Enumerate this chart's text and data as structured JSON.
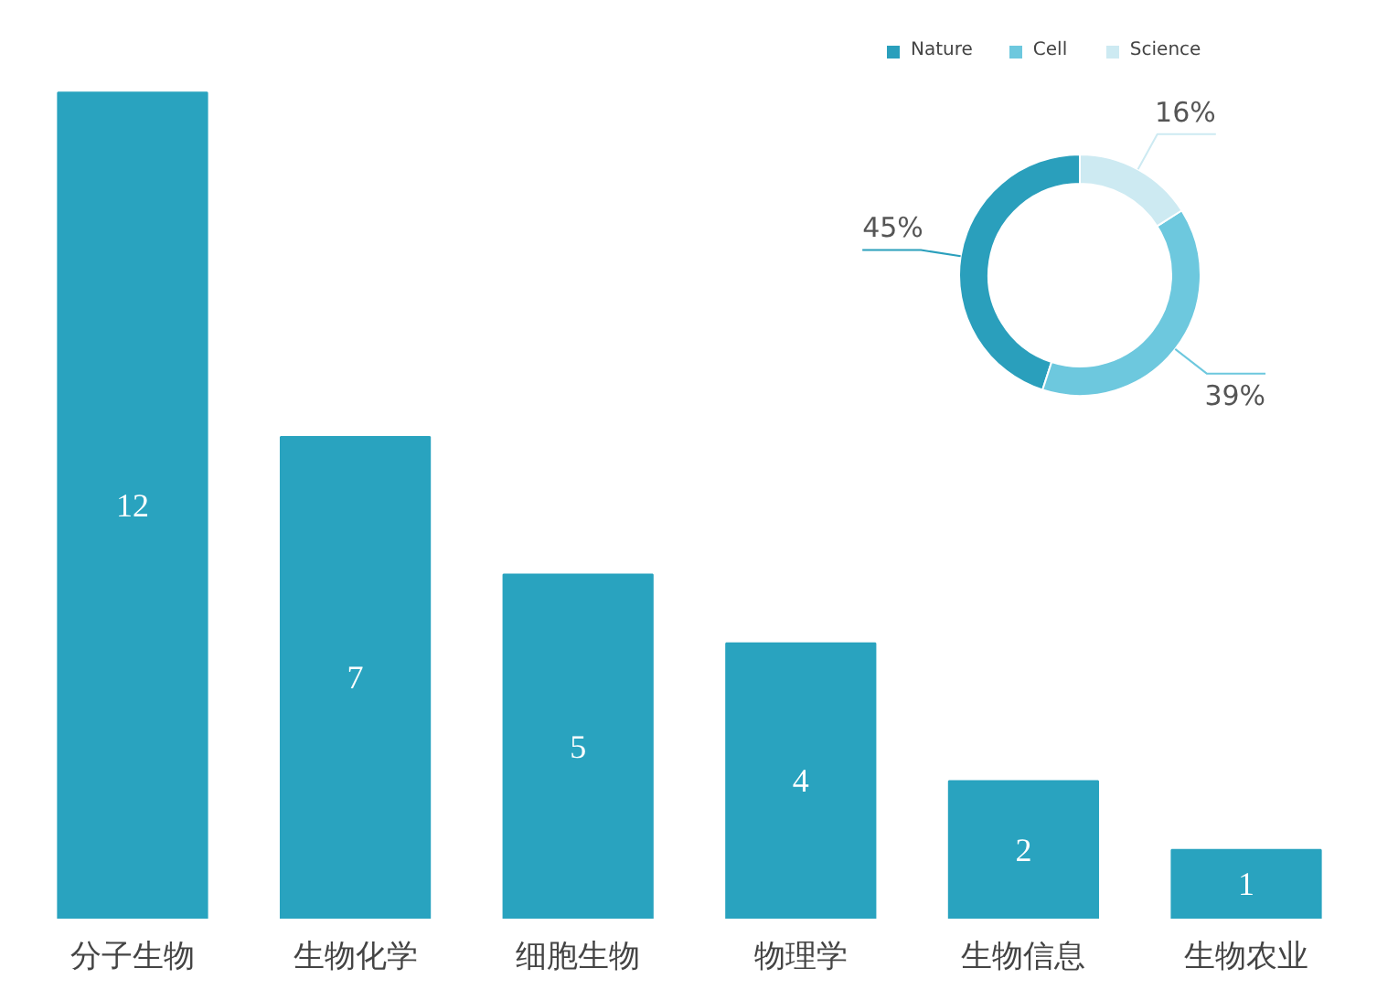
{
  "chart_data": [
    {
      "type": "bar",
      "categories": [
        "分子生物",
        "生物化学",
        "细胞生物",
        "物理学",
        "生物信息",
        "生物农业"
      ],
      "values": [
        12,
        7,
        5,
        4,
        2,
        1
      ],
      "color": "#29a3bf",
      "data_labels": true,
      "legend": false,
      "grid": false
    },
    {
      "type": "donut",
      "categories": [
        "Nature",
        "Cell",
        "Science"
      ],
      "values": [
        45,
        39,
        16
      ],
      "colors": [
        "#2a9fbc",
        "#6dc8de",
        "#cdeaf2"
      ],
      "value_labels": [
        "45%",
        "39%",
        "16%"
      ],
      "legend": "top"
    }
  ]
}
